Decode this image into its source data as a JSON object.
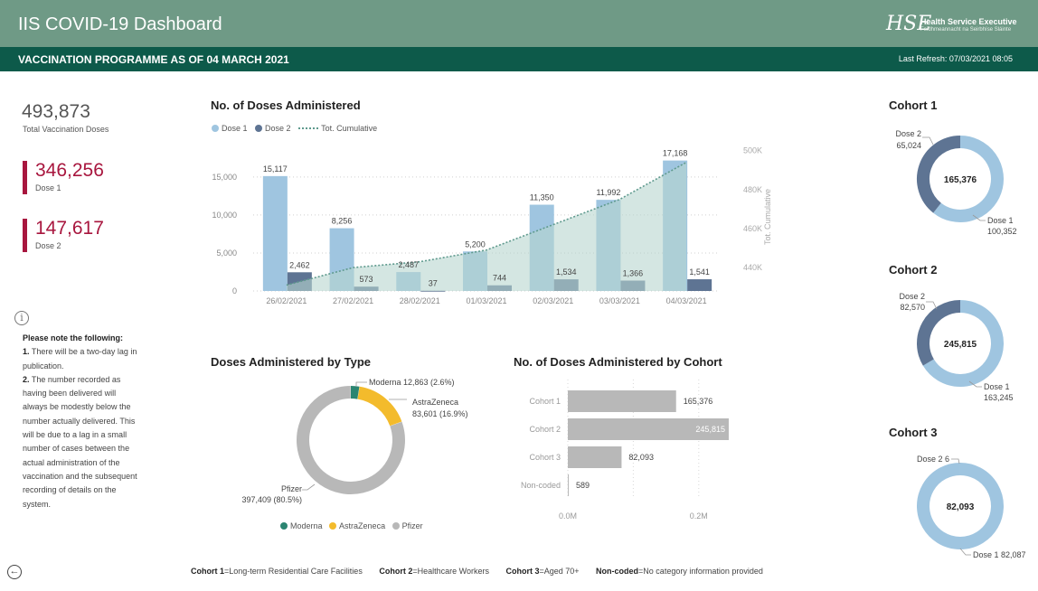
{
  "header": {
    "title": "IIS COVID-19 Dashboard",
    "logo_mark": "HSE",
    "logo_name": "Health Service Executive",
    "logo_sub": "Feidhmeannacht na Seirbhíse Sláinte",
    "programme": "VACCINATION PROGRAMME AS OF 04 MARCH 2021",
    "last_refresh": "Last Refresh: 07/03/2021 08:05"
  },
  "kpis": {
    "total_value": "493,873",
    "total_label": "Total Vaccination Doses",
    "dose1_value": "346,256",
    "dose1_label": "Dose 1",
    "dose2_value": "147,617",
    "dose2_label": "Dose 2"
  },
  "note": {
    "heading": "Please note the following:",
    "n1": "1.",
    "p1": " There will be a two-day lag in publication.",
    "n2": "2.",
    "p2": " The number recorded as having been delivered will always be modestly below the number actually delivered.  This will be due to a lag in a small number of cases between the actual administration of the vaccination and the subsequent recording of details on the system."
  },
  "footer": {
    "c1_key": "Cohort 1",
    "c1_val": "=Long-term Residential Care Facilities",
    "c2_key": "Cohort 2",
    "c2_val": "=Healthcare Workers",
    "c3_key": "Cohort 3",
    "c3_val": "=Aged 70+",
    "nc_key": "Non-coded",
    "nc_val": "=No category information provided"
  },
  "colors": {
    "dose1": "#9fc5e0",
    "dose2": "#5e7493",
    "cumulative_area": "#b8d6cf",
    "cumulative_line": "#5f9a8e",
    "moderna": "#2b8571",
    "astrazeneca": "#f3bb2c",
    "pfizer": "#b8b8b8",
    "cohort_bar": "#b8b8b8"
  },
  "chart_data": [
    {
      "id": "doses",
      "type": "bar",
      "title": "No. of Doses Administered",
      "categories": [
        "26/02/2021",
        "27/02/2021",
        "28/02/2021",
        "01/03/2021",
        "02/03/2021",
        "03/03/2021",
        "04/03/2021"
      ],
      "series": [
        {
          "name": "Dose 1",
          "values": [
            15117,
            8256,
            2487,
            5200,
            11350,
            11992,
            17168
          ]
        },
        {
          "name": "Dose 2",
          "values": [
            2462,
            573,
            37,
            744,
            1534,
            1366,
            1541
          ]
        },
        {
          "name": "Tot. Cumulative",
          "type": "area",
          "axis": "right",
          "values": [
            431000,
            440000,
            443000,
            449000,
            462000,
            475000,
            494000
          ]
        }
      ],
      "data_labels": {
        "dose1": [
          "15,117",
          "8,256",
          "2,487",
          "5,200",
          "11,350",
          "11,992",
          "17,168"
        ],
        "dose2": [
          "2,462",
          "573",
          "37",
          "744",
          "1,534",
          "1,366",
          "1,541"
        ]
      },
      "y_ticks": [
        "0",
        "5,000",
        "10,000",
        "15,000"
      ],
      "y2_ticks": [
        "440K",
        "460K",
        "480K",
        "500K"
      ],
      "y2label": "Tot. Cumulative",
      "ylim": [
        0,
        19500
      ],
      "y2lim": [
        428000,
        504000
      ],
      "grid": true,
      "legend": "top-left"
    },
    {
      "id": "by_type",
      "type": "pie",
      "title": "Doses Administered by Type",
      "categories": [
        "Moderna",
        "AstraZeneca",
        "Pfizer"
      ],
      "values": [
        12863,
        83601,
        397409
      ],
      "labels": [
        {
          "name": "Moderna",
          "value": "12,863 (2.6%)"
        },
        {
          "name": "AstraZeneca",
          "value": "83,601 (16.9%)"
        },
        {
          "name": "Pfizer",
          "value": "397,409 (80.5%)"
        }
      ],
      "legend": "bottom"
    },
    {
      "id": "by_cohort",
      "type": "bar",
      "title": "No. of Doses Administered by Cohort",
      "categories": [
        "Cohort 1",
        "Cohort 2",
        "Cohort 3",
        "Non-coded"
      ],
      "values": [
        165376,
        245815,
        82093,
        589
      ],
      "data_labels": [
        "165,376",
        "245,815",
        "82,093",
        "589"
      ],
      "x_ticks": [
        "0.0M",
        "0.2M"
      ],
      "xlim": [
        0,
        250000
      ],
      "grid": true
    },
    {
      "id": "cohort1",
      "type": "pie",
      "title": "Cohort 1",
      "center": "165,376",
      "categories": [
        "Dose 1",
        "Dose 2"
      ],
      "values": [
        100352,
        65024
      ],
      "labels": [
        "Dose 1",
        "100,352",
        "Dose 2",
        "65,024"
      ]
    },
    {
      "id": "cohort2",
      "type": "pie",
      "title": "Cohort 2",
      "center": "245,815",
      "categories": [
        "Dose 1",
        "Dose 2"
      ],
      "values": [
        163245,
        82570
      ],
      "labels": [
        "Dose 1",
        "163,245",
        "Dose 2",
        "82,570"
      ]
    },
    {
      "id": "cohort3",
      "type": "pie",
      "title": "Cohort 3",
      "center": "82,093",
      "categories": [
        "Dose 1",
        "Dose 2"
      ],
      "values": [
        82087,
        6
      ],
      "labels": [
        "Dose 1 82,087",
        "Dose 2 6"
      ]
    }
  ]
}
